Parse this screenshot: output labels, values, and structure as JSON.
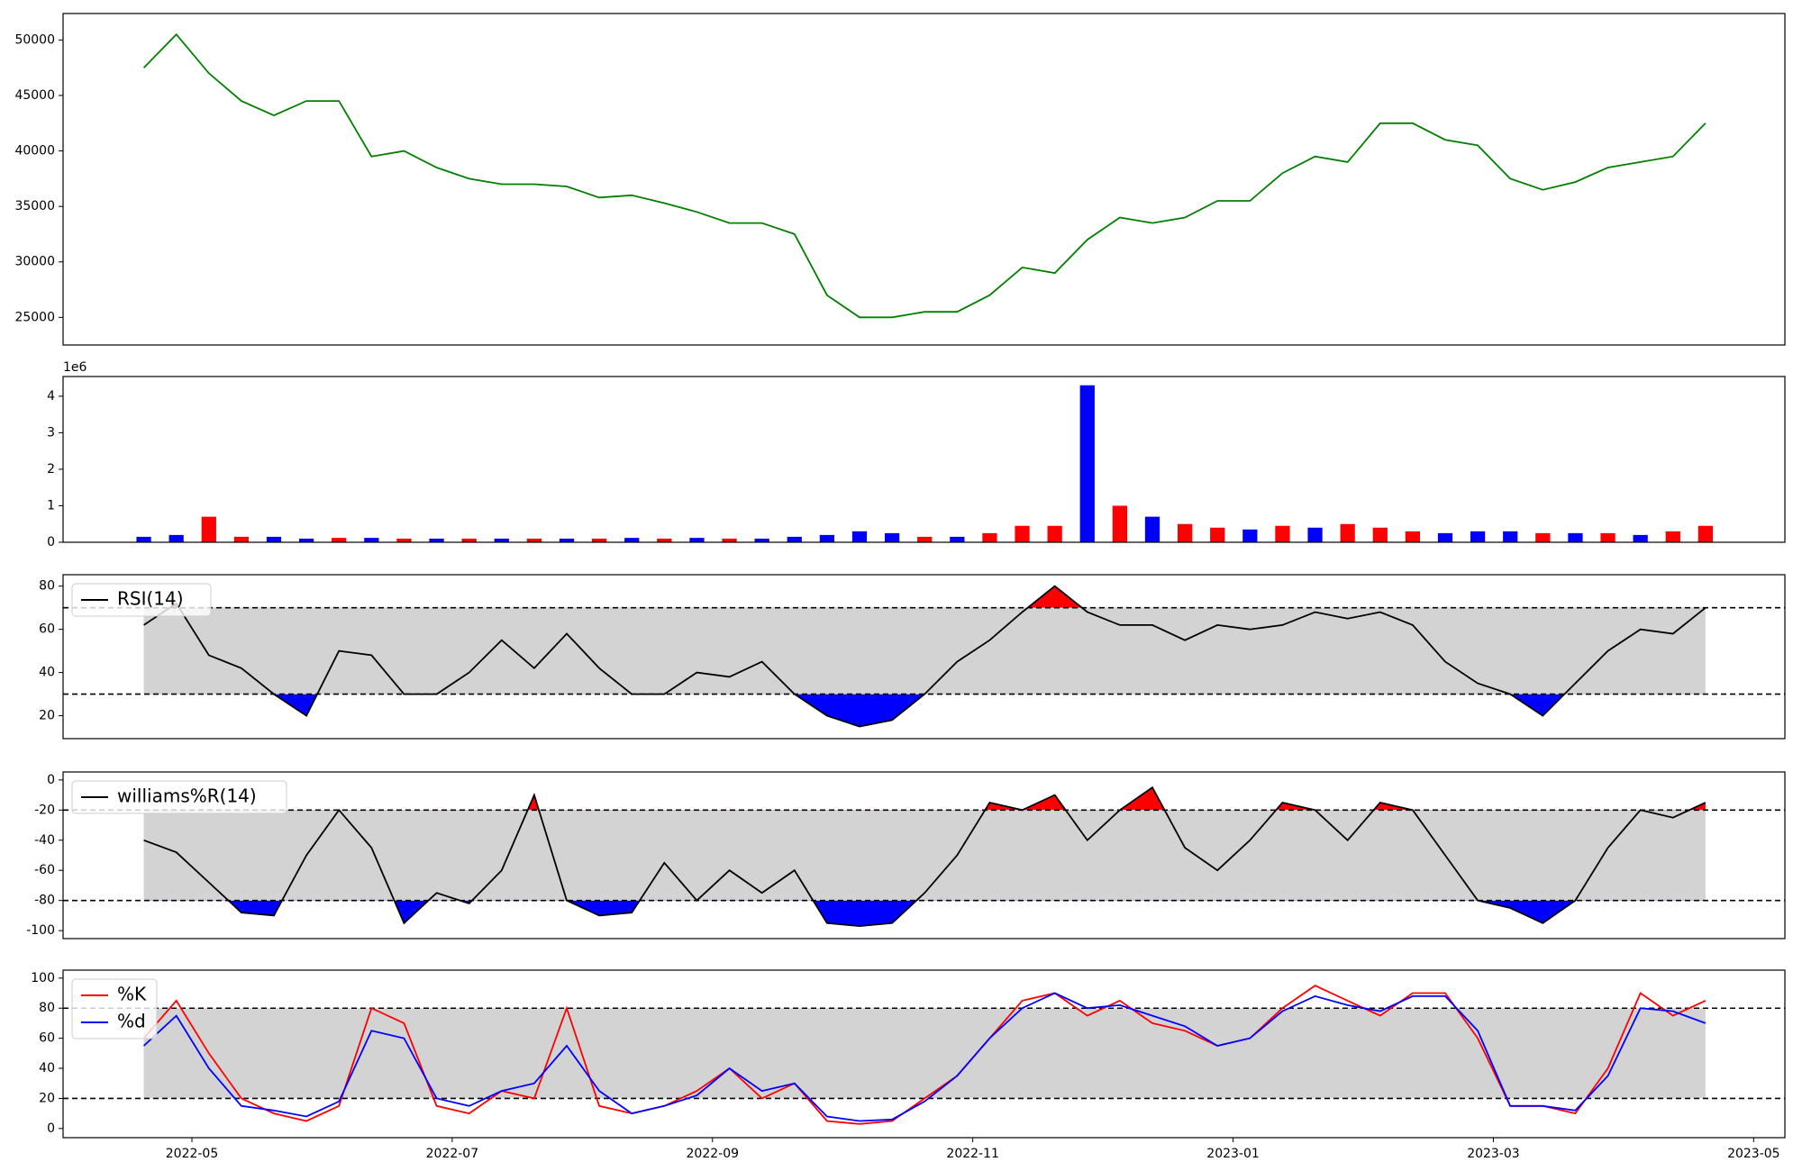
{
  "chart_data": {
    "type": "multi-panel",
    "x": [
      -0.37,
      -0.12,
      0.13,
      0.38,
      0.63,
      0.88,
      1.13,
      1.38,
      1.63,
      1.88,
      2.13,
      2.38,
      2.63,
      2.88,
      3.13,
      3.38,
      3.63,
      3.88,
      4.13,
      4.38,
      4.63,
      4.88,
      5.13,
      5.38,
      5.63,
      5.88,
      6.13,
      6.38,
      6.63,
      6.88,
      7.13,
      7.38,
      7.63,
      7.88,
      8.13,
      8.38,
      8.63,
      8.88,
      9.13,
      9.38,
      9.63,
      9.88,
      10.13,
      10.38,
      10.63,
      10.88,
      11.13,
      11.38,
      11.63
    ],
    "xlim": [
      -0.99,
      12.24
    ],
    "xticks": [
      {
        "value": 0,
        "label": "2022-05"
      },
      {
        "value": 2,
        "label": "2022-07"
      },
      {
        "value": 4,
        "label": "2022-09"
      },
      {
        "value": 6,
        "label": "2022-11"
      },
      {
        "value": 8,
        "label": "2023-01"
      },
      {
        "value": 10,
        "label": "2023-03"
      },
      {
        "value": 12,
        "label": "2023-05"
      }
    ],
    "panels": [
      {
        "type": "line",
        "color": "#008000",
        "values": [
          47500,
          50500,
          47000,
          44500,
          43200,
          44500,
          44500,
          39500,
          40000,
          38500,
          37500,
          37000,
          37000,
          36800,
          35800,
          36000,
          35300,
          34500,
          33500,
          33500,
          32500,
          27000,
          25000,
          25000,
          25500,
          25500,
          27000,
          29500,
          29000,
          32000,
          34000,
          33500,
          34000,
          35500,
          35500,
          38000,
          39500,
          39000,
          42500,
          42500,
          41000,
          40500,
          37500,
          36500,
          37200,
          38500,
          39000,
          39500,
          42500
        ],
        "ylim": [
          22510,
          52386
        ],
        "yticks": [
          25000,
          30000,
          35000,
          40000,
          45000,
          50000
        ]
      },
      {
        "type": "bar",
        "offset_text": "1e6",
        "values": [
          0.15,
          0.2,
          0.7,
          0.15,
          0.15,
          0.1,
          0.12,
          0.12,
          0.1,
          0.1,
          0.1,
          0.1,
          0.1,
          0.1,
          0.1,
          0.12,
          0.1,
          0.12,
          0.1,
          0.1,
          0.15,
          0.2,
          0.3,
          0.25,
          0.15,
          0.15,
          0.25,
          0.45,
          0.45,
          4.3,
          1.0,
          0.7,
          0.5,
          0.4,
          0.35,
          0.45,
          0.4,
          0.5,
          0.4,
          0.3,
          0.25,
          0.3,
          0.3,
          0.25,
          0.25,
          0.25,
          0.2,
          0.3,
          0.45
        ],
        "bar_colors": [
          "#0000ff",
          "#0000ff",
          "#ff0000",
          "#ff0000",
          "#0000ff",
          "#0000ff",
          "#ff0000",
          "#0000ff",
          "#ff0000",
          "#0000ff",
          "#ff0000",
          "#0000ff",
          "#ff0000",
          "#0000ff",
          "#ff0000",
          "#0000ff",
          "#ff0000",
          "#0000ff",
          "#ff0000",
          "#0000ff",
          "#0000ff",
          "#0000ff",
          "#0000ff",
          "#0000ff",
          "#ff0000",
          "#0000ff",
          "#ff0000",
          "#ff0000",
          "#ff0000",
          "#0000ff",
          "#ff0000",
          "#0000ff",
          "#ff0000",
          "#ff0000",
          "#0000ff",
          "#ff0000",
          "#0000ff",
          "#ff0000",
          "#ff0000",
          "#ff0000",
          "#0000ff",
          "#0000ff",
          "#0000ff",
          "#ff0000",
          "#0000ff",
          "#ff0000",
          "#0000ff",
          "#ff0000",
          "#ff0000"
        ],
        "ylim": [
          0,
          4.54
        ],
        "yticks": [
          0,
          1,
          2,
          3,
          4
        ]
      },
      {
        "type": "oscillator",
        "legend": "upper left",
        "levels": [
          30,
          70
        ],
        "band_color": "#d3d3d3",
        "over_color": "#ff0000",
        "under_color": "#0000ff",
        "series": [
          {
            "name": "RSI(14)",
            "color": "#000000",
            "values": [
              62,
              72,
              48,
              42,
              30,
              20,
              50,
              48,
              30,
              30,
              40,
              55,
              42,
              58,
              42,
              30,
              30,
              40,
              38,
              45,
              30,
              20,
              15,
              18,
              30,
              45,
              55,
              68,
              80,
              68,
              62,
              62,
              55,
              62,
              60,
              62,
              68,
              65,
              68,
              62,
              45,
              35,
              30,
              20,
              35,
              50,
              60,
              58,
              70
            ]
          }
        ],
        "ylim": [
          9.4,
          85.3
        ],
        "yticks": [
          20,
          40,
          60,
          80
        ]
      },
      {
        "type": "oscillator",
        "legend": "upper left",
        "levels": [
          -80,
          -20
        ],
        "band_color": "#d3d3d3",
        "over_color": "#ff0000",
        "under_color": "#0000ff",
        "series": [
          {
            "name": "williams%R(14)",
            "color": "#000000",
            "values": [
              -40,
              -48,
              -68,
              -88,
              -90,
              -50,
              -20,
              -45,
              -95,
              -75,
              -82,
              -60,
              -10,
              -80,
              -90,
              -88,
              -55,
              -80,
              -60,
              -75,
              -60,
              -95,
              -97,
              -95,
              -75,
              -50,
              -15,
              -20,
              -10,
              -40,
              -20,
              -5,
              -45,
              -60,
              -40,
              -15,
              -20,
              -40,
              -15,
              -20,
              -50,
              -80,
              -85,
              -95,
              -80,
              -45,
              -20,
              -25,
              -15
            ]
          }
        ],
        "ylim": [
          -105.3,
          5.3
        ],
        "yticks": [
          -100,
          -80,
          -60,
          -40,
          -20,
          0
        ]
      },
      {
        "type": "oscillator",
        "legend": "upper left",
        "levels": [
          20,
          80
        ],
        "band_color": "#d3d3d3",
        "series": [
          {
            "name": "%K",
            "color": "#ff0000",
            "values": [
              60,
              85,
              50,
              20,
              10,
              5,
              15,
              80,
              70,
              15,
              10,
              25,
              20,
              80,
              15,
              10,
              15,
              25,
              40,
              20,
              30,
              5,
              3,
              5,
              20,
              35,
              60,
              85,
              90,
              75,
              85,
              70,
              65,
              55,
              60,
              80,
              95,
              85,
              75,
              90,
              90,
              60,
              15,
              15,
              10,
              40,
              90,
              75,
              85
            ]
          },
          {
            "name": "%d",
            "color": "#0000ff",
            "values": [
              55,
              75,
              40,
              15,
              12,
              8,
              18,
              65,
              60,
              20,
              15,
              25,
              30,
              55,
              25,
              10,
              15,
              22,
              40,
              25,
              30,
              8,
              5,
              6,
              18,
              35,
              60,
              80,
              90,
              80,
              82,
              75,
              68,
              55,
              60,
              78,
              88,
              82,
              78,
              88,
              88,
              65,
              15,
              15,
              12,
              35,
              80,
              78,
              70
            ]
          }
        ],
        "ylim": [
          -6.1,
          105.3
        ],
        "yticks": [
          0,
          20,
          40,
          60,
          80,
          100
        ]
      }
    ]
  }
}
